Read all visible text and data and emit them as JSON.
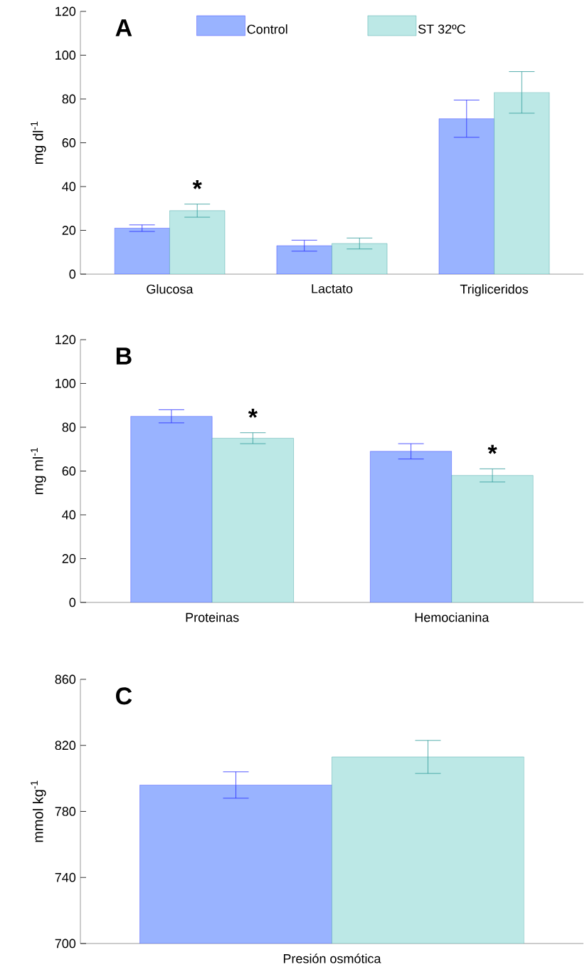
{
  "chart_data": [
    {
      "type": "bar",
      "title": "A",
      "ylabel": "mg dl$^{-1}$",
      "categories": [
        "Glucosa",
        "Lactato",
        "Trigliceridos"
      ],
      "series": [
        {
          "name": "Control",
          "color": "#99b3ff",
          "values": [
            21,
            13,
            71
          ],
          "errors": [
            1.5,
            2.5,
            8.5
          ]
        },
        {
          "name": "ST 32ºC",
          "color": "#bce8e6",
          "values": [
            29,
            14,
            83
          ],
          "errors": [
            3,
            2.5,
            9.5
          ]
        }
      ],
      "ylim": [
        0,
        120
      ],
      "yticks": [
        0,
        20,
        40,
        60,
        80,
        100,
        120
      ],
      "legend": "top",
      "annotations": [
        {
          "text": "*",
          "x": "Glucosa",
          "y": 29
        }
      ]
    },
    {
      "type": "bar",
      "title": "B",
      "ylabel": "mg ml$^{-1}$",
      "categories": [
        "Proteinas",
        "Hemocianina"
      ],
      "series": [
        {
          "color": "#99b3ff",
          "values": [
            85,
            69
          ],
          "errors": [
            3,
            3.5
          ]
        },
        {
          "color": "#bce8e6",
          "values": [
            75,
            58
          ],
          "errors": [
            2.5,
            3
          ]
        }
      ],
      "ylim": [
        0,
        120
      ],
      "yticks": [
        0,
        20,
        40,
        60,
        80,
        100,
        120
      ],
      "annotations": [
        {
          "text": "*",
          "x": "Proteinas",
          "y": 75
        },
        {
          "text": "*",
          "x": "Hemocianina",
          "y": 58
        }
      ]
    },
    {
      "type": "bar",
      "title": "C",
      "ylabel": "mmol  kg$^{-1}$",
      "categories": [
        "Presión osmótica"
      ],
      "series": [
        {
          "color": "#99b3ff",
          "values": [
            796
          ],
          "errors": [
            8
          ]
        },
        {
          "color": "#bce8e6",
          "values": [
            813
          ],
          "errors": [
            10
          ]
        }
      ],
      "ylim": [
        700,
        860
      ],
      "yticks": [
        700,
        740,
        780,
        820,
        860
      ]
    }
  ]
}
